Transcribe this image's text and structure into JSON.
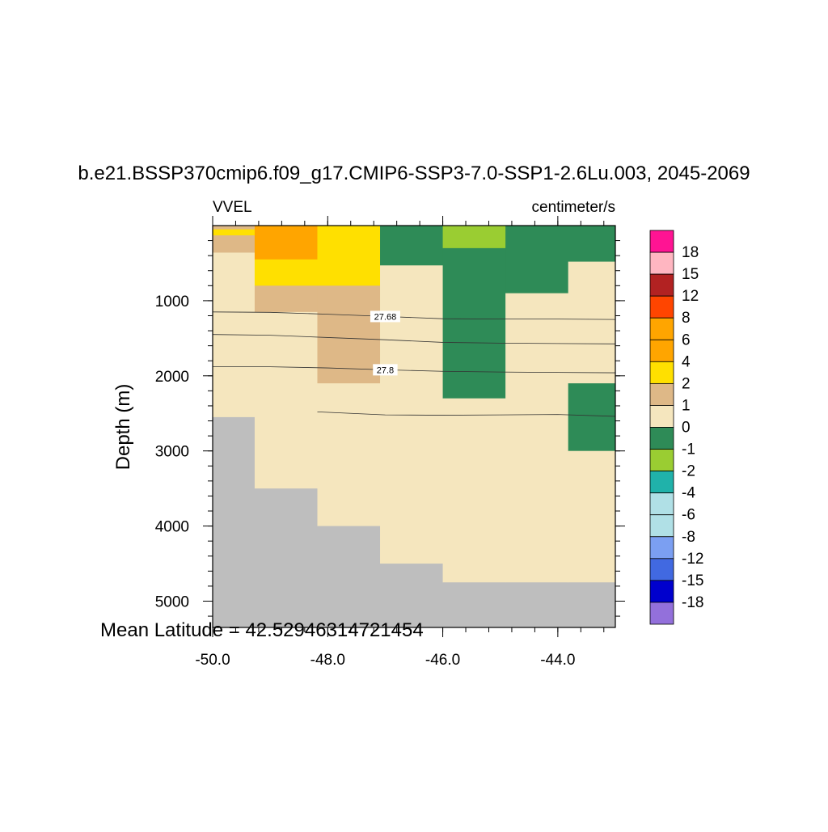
{
  "chart_data": {
    "type": "heatmap",
    "title": "b.e21.BSSP370cmip6.f09_g17.CMIP6-SSP3-7.0-SSP1-2.6Lu.003, 2045-2069",
    "left_label": "VVEL",
    "right_label": "centimeter/s",
    "ylabel": "Depth (m)",
    "xlabel": "",
    "footer": "Mean Latitude = 42.52946314721454",
    "xlim": [
      -50.0,
      -43.0
    ],
    "ylim": [
      5350,
      0
    ],
    "x_ticks": [
      -50.0,
      -48.0,
      -46.0,
      -44.0
    ],
    "x_tick_labels": [
      "-50.0",
      "-48.0",
      "-46.0",
      "-44.0"
    ],
    "y_ticks": [
      1000,
      2000,
      3000,
      4000,
      5000
    ],
    "y_tick_labels": [
      "1000",
      "2000",
      "3000",
      "4000",
      "5000"
    ],
    "y_reversed": true,
    "land_color": "#bebebe",
    "colorbar": {
      "labels": [
        "18",
        "15",
        "12",
        "8",
        "6",
        "4",
        "2",
        "1",
        "0",
        "-1",
        "-2",
        "-4",
        "-6",
        "-8",
        "-12",
        "-15",
        "-18"
      ],
      "colors": [
        "#ff1493",
        "#ffb6c1",
        "#b22222",
        "#ff4500",
        "#ffa500",
        "#ffa500",
        "#ffe000",
        "#deb887",
        "#f5e6be",
        "#2e8b57",
        "#9acd32",
        "#20b2aa",
        "#b0e0e6",
        "#b0e0e6",
        "#7b9ff2",
        "#4169e1",
        "#0000cd",
        "#9370db"
      ]
    },
    "cells": [
      {
        "x0": -50.0,
        "x1": -49.27,
        "d0": 0,
        "d1": 50,
        "color": "#deb887"
      },
      {
        "x0": -50.0,
        "x1": -49.27,
        "d0": 50,
        "d1": 130,
        "color": "#ffe000"
      },
      {
        "x0": -50.0,
        "x1": -49.27,
        "d0": 130,
        "d1": 360,
        "color": "#deb887"
      },
      {
        "x0": -50.0,
        "x1": -49.27,
        "d0": 360,
        "d1": 2550,
        "color": "#f5e6be"
      },
      {
        "x0": -50.0,
        "x1": -49.27,
        "d0": 2550,
        "d1": 5350,
        "color": "#bebebe"
      },
      {
        "x0": -49.27,
        "x1": -48.18,
        "d0": 0,
        "d1": 450,
        "color": "#ffa500"
      },
      {
        "x0": -49.27,
        "x1": -48.18,
        "d0": 450,
        "d1": 800,
        "color": "#ffe000"
      },
      {
        "x0": -49.27,
        "x1": -48.18,
        "d0": 800,
        "d1": 1150,
        "color": "#deb887"
      },
      {
        "x0": -49.27,
        "x1": -48.18,
        "d0": 1150,
        "d1": 3500,
        "color": "#f5e6be"
      },
      {
        "x0": -49.27,
        "x1": -48.18,
        "d0": 3500,
        "d1": 5350,
        "color": "#bebebe"
      },
      {
        "x0": -48.18,
        "x1": -47.09,
        "d0": 0,
        "d1": 800,
        "color": "#ffe000"
      },
      {
        "x0": -48.18,
        "x1": -47.09,
        "d0": 800,
        "d1": 2100,
        "color": "#deb887"
      },
      {
        "x0": -48.18,
        "x1": -47.09,
        "d0": 2100,
        "d1": 4000,
        "color": "#f5e6be"
      },
      {
        "x0": -48.18,
        "x1": -47.09,
        "d0": 4000,
        "d1": 5350,
        "color": "#bebebe"
      },
      {
        "x0": -47.09,
        "x1": -46.0,
        "d0": 0,
        "d1": 530,
        "color": "#2e8b57"
      },
      {
        "x0": -47.09,
        "x1": -46.0,
        "d0": 530,
        "d1": 4500,
        "color": "#f5e6be"
      },
      {
        "x0": -47.09,
        "x1": -46.0,
        "d0": 4500,
        "d1": 5350,
        "color": "#bebebe"
      },
      {
        "x0": -46.0,
        "x1": -44.91,
        "d0": 0,
        "d1": 300,
        "color": "#9acd32"
      },
      {
        "x0": -46.0,
        "x1": -44.91,
        "d0": 300,
        "d1": 2300,
        "color": "#2e8b57"
      },
      {
        "x0": -46.0,
        "x1": -44.91,
        "d0": 2300,
        "d1": 4750,
        "color": "#f5e6be"
      },
      {
        "x0": -46.0,
        "x1": -44.91,
        "d0": 4750,
        "d1": 5350,
        "color": "#bebebe"
      },
      {
        "x0": -44.91,
        "x1": -43.82,
        "d0": 0,
        "d1": 900,
        "color": "#2e8b57"
      },
      {
        "x0": -44.91,
        "x1": -43.82,
        "d0": 900,
        "d1": 4750,
        "color": "#f5e6be"
      },
      {
        "x0": -44.91,
        "x1": -43.82,
        "d0": 4750,
        "d1": 5350,
        "color": "#bebebe"
      },
      {
        "x0": -43.82,
        "x1": -43.0,
        "d0": 0,
        "d1": 480,
        "color": "#2e8b57"
      },
      {
        "x0": -43.82,
        "x1": -43.0,
        "d0": 480,
        "d1": 2100,
        "color": "#f5e6be"
      },
      {
        "x0": -43.82,
        "x1": -43.0,
        "d0": 2100,
        "d1": 3000,
        "color": "#2e8b57"
      },
      {
        "x0": -43.82,
        "x1": -43.0,
        "d0": 3000,
        "d1": 4750,
        "color": "#f5e6be"
      },
      {
        "x0": -43.82,
        "x1": -43.0,
        "d0": 4750,
        "d1": 5350,
        "color": "#bebebe"
      }
    ],
    "contours": [
      {
        "label": "27.68",
        "label_at": [
          -47.0,
          1210
        ],
        "points": [
          [
            -50.0,
            1150
          ],
          [
            -49.0,
            1155
          ],
          [
            -48.0,
            1180
          ],
          [
            -47.0,
            1210
          ],
          [
            -46.0,
            1240
          ],
          [
            -45.0,
            1245
          ],
          [
            -44.0,
            1245
          ],
          [
            -43.0,
            1250
          ]
        ]
      },
      {
        "label": "",
        "points": [
          [
            -50.0,
            1450
          ],
          [
            -49.0,
            1460
          ],
          [
            -48.0,
            1490
          ],
          [
            -47.0,
            1520
          ],
          [
            -46.0,
            1555
          ],
          [
            -45.0,
            1565
          ],
          [
            -44.0,
            1570
          ],
          [
            -43.0,
            1575
          ]
        ]
      },
      {
        "label": "27.8",
        "label_at": [
          -47.0,
          1920
        ],
        "points": [
          [
            -50.0,
            1880
          ],
          [
            -49.0,
            1880
          ],
          [
            -48.0,
            1895
          ],
          [
            -47.0,
            1920
          ],
          [
            -46.0,
            1940
          ],
          [
            -45.0,
            1950
          ],
          [
            -44.0,
            1955
          ],
          [
            -43.0,
            1960
          ]
        ]
      },
      {
        "label": "",
        "points": [
          [
            -48.18,
            2480
          ],
          [
            -47.0,
            2520
          ],
          [
            -46.0,
            2525
          ],
          [
            -45.0,
            2520
          ],
          [
            -44.0,
            2515
          ],
          [
            -43.0,
            2540
          ]
        ]
      }
    ]
  }
}
